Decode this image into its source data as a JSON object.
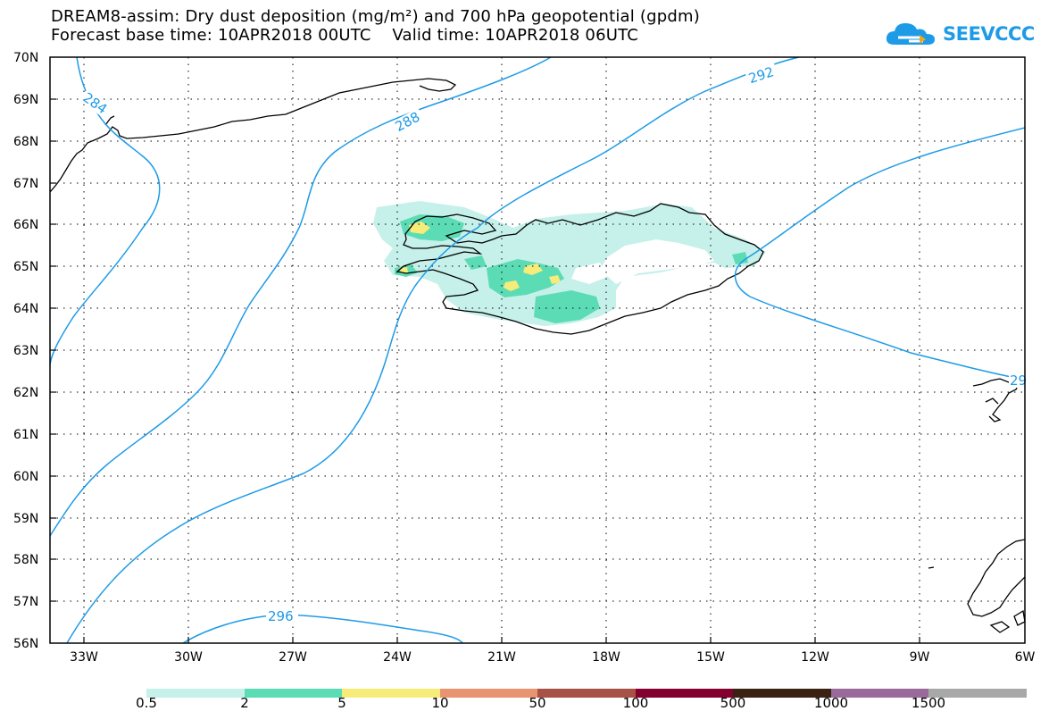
{
  "title": {
    "line1": "DREAM8-assim: Dry dust deposition (mg/m²) and 700 hPa geopotential (gpdm)",
    "line2": "Forecast base time: 10APR2018 00UTC    Valid time: 10APR2018 06UTC"
  },
  "logo": {
    "text": "SEEVCCC"
  },
  "map": {
    "lat_labels": [
      "70N",
      "69N",
      "68N",
      "67N",
      "66N",
      "65N",
      "64N",
      "63N",
      "62N",
      "61N",
      "60N",
      "59N",
      "58N",
      "57N",
      "56N"
    ],
    "lon_labels": [
      "33W",
      "30W",
      "27W",
      "24W",
      "21W",
      "18W",
      "15W",
      "12W",
      "9W",
      "6W"
    ],
    "contour_labels": [
      "284",
      "288",
      "292",
      "296",
      "29"
    ],
    "colors": {
      "contour": "#1e9be6",
      "coast": "#000000",
      "grid": "#000000"
    }
  },
  "colorbar": {
    "labels": [
      "0.5",
      "2",
      "5",
      "10",
      "50",
      "100",
      "500",
      "1000",
      "1500"
    ],
    "colors": [
      "#c6f0ea",
      "#5cdcb5",
      "#f7ec7a",
      "#e99470",
      "#a85247",
      "#84002f",
      "#3a2212",
      "#9a6b9a",
      "#a8a8a8"
    ]
  }
}
